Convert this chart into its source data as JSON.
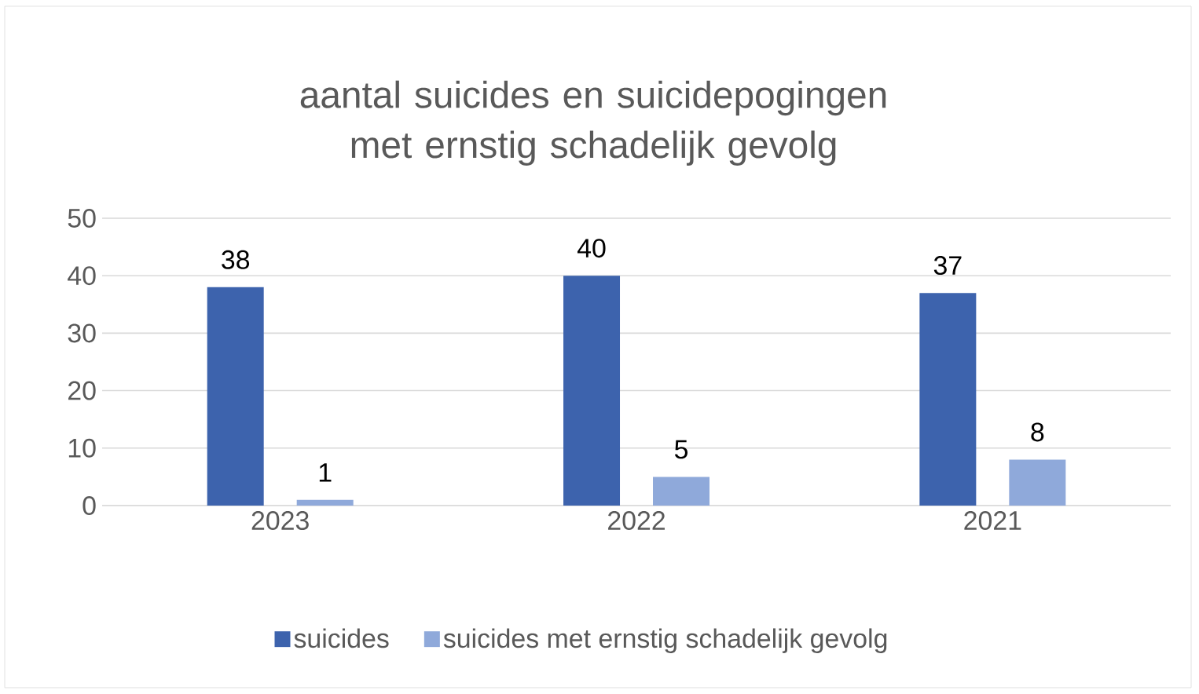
{
  "chart_data": {
    "type": "bar",
    "title": "aantal suicides en suicidepogingen met ernstig schadelijk gevolg",
    "categories": [
      "2023",
      "2022",
      "2021"
    ],
    "series": [
      {
        "name": "suicides",
        "color": "#3d63ad",
        "values": [
          38,
          40,
          37
        ]
      },
      {
        "name": "suicides met ernstig schadelijk gevolg",
        "color": "#8fa9da",
        "values": [
          1,
          5,
          8
        ]
      }
    ],
    "ylim": [
      0,
      50
    ],
    "yticks": [
      0,
      10,
      20,
      30,
      40,
      50
    ],
    "grid": "y",
    "legend": "bottom",
    "data_labels": true
  }
}
